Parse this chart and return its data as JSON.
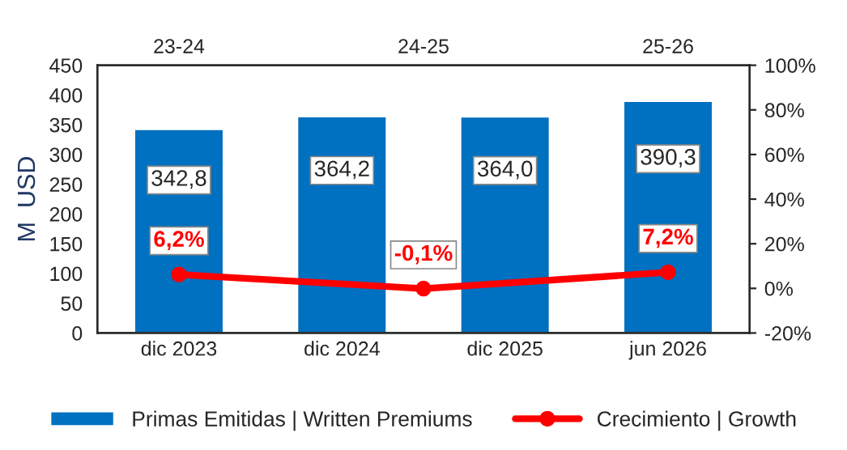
{
  "chart_data": [
    {
      "type": "bar",
      "categories": [
        "dic 2023",
        "dic 2024",
        "dic 2025",
        "jun 2026"
      ],
      "ylabel": "M  USD",
      "ylim": [
        0,
        450
      ],
      "yticks": [
        0,
        50,
        100,
        150,
        200,
        250,
        300,
        350,
        400,
        450
      ],
      "series": [
        {
          "name": "Primas Emitidas | Written Premiums",
          "color": "#0070c0",
          "values": [
            342.8,
            364.2,
            364.0,
            390.3
          ],
          "value_labels": [
            "342,8",
            "364,2",
            "364,0",
            "390,3"
          ]
        }
      ],
      "legend": "bottom"
    },
    {
      "type": "line",
      "categories": [
        "23-24",
        "24-25",
        "25-26"
      ],
      "ylim": [
        -20,
        100
      ],
      "yticks": [
        {
          "value": -20,
          "label": "-20%"
        },
        {
          "value": 0,
          "label": "0%"
        },
        {
          "value": 20,
          "label": "20%"
        },
        {
          "value": 40,
          "label": "40%"
        },
        {
          "value": 60,
          "label": "60%"
        },
        {
          "value": 80,
          "label": "80%"
        },
        {
          "value": 100,
          "label": "100%"
        }
      ],
      "series": [
        {
          "name": "Crecimiento | Growth",
          "color": "#ff0000",
          "values": [
            6.2,
            -0.1,
            7.2
          ],
          "value_labels": [
            "6,2%",
            "-0,1%",
            "7,2%"
          ]
        }
      ],
      "marker": "circle",
      "line_style": "solid",
      "legend": "bottom"
    }
  ]
}
